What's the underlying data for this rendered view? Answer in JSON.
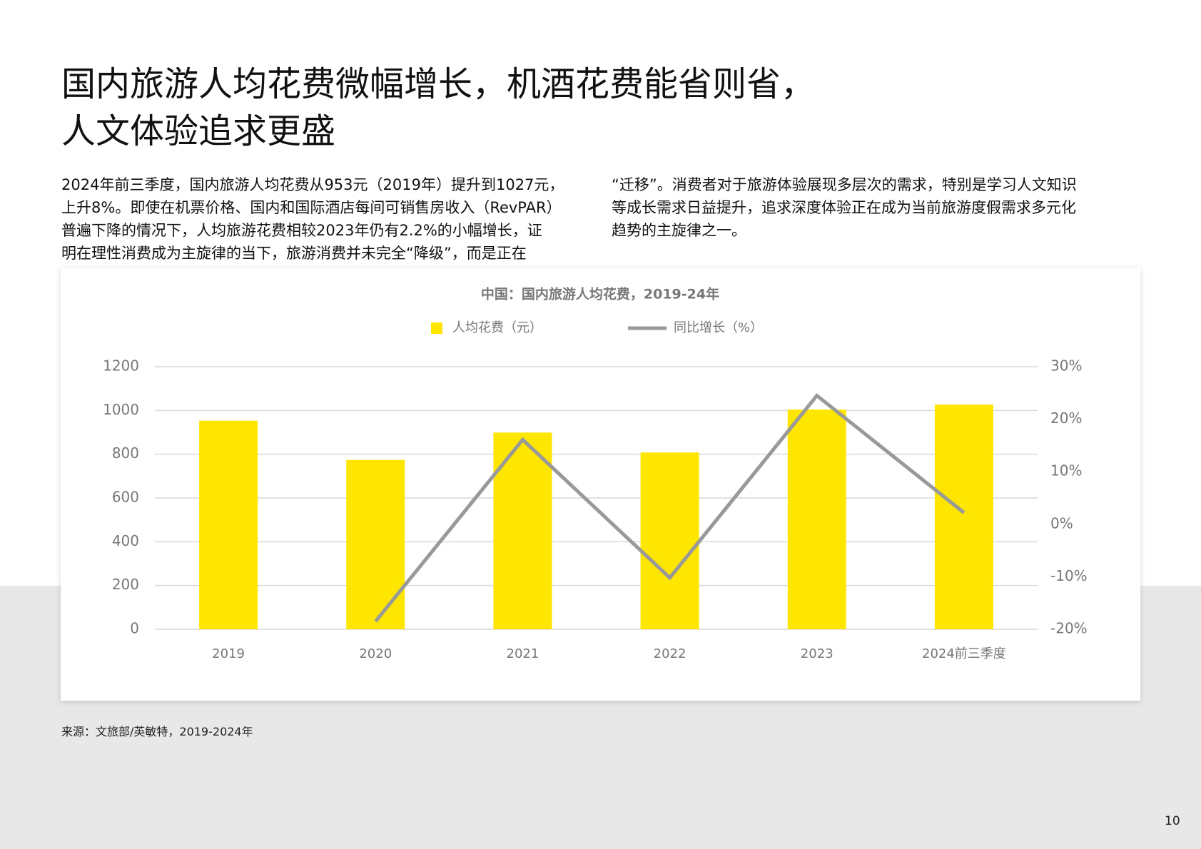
{
  "title_lines": [
    "国内旅游人均花费微幅增长，机酒花费能省则省，",
    "人文体验追求更盛"
  ],
  "paragraph_left": [
    "2024年前三季度，国内旅游人均花费从953元（2019年）提升到1027元，",
    "上升8%。即使在机票价格、国内和国际酒店每间可销售房收入（RevPAR）",
    "普遍下降的情况下，人均旅游花费相较2023年仍有2.2%的小幅增长，证",
    "明在理性消费成为主旋律的当下，旅游消费并未完全“降级”，而是正在"
  ],
  "paragraph_right": [
    "“迁移”。消费者对于旅游体验展现多层次的需求，特别是学习人文知识",
    "等成长需求日益提升，追求深度体验正在成为当前旅游度假需求多元化",
    "趋势的主旋律之一。"
  ],
  "source": "来源：文旅部/英敏特，2019-2024年",
  "page_number": "10",
  "chart_data": {
    "type": "bar-line",
    "title": "中国：国内旅游人均花费，2019-24年",
    "categories": [
      "2019",
      "2020",
      "2021",
      "2022",
      "2023",
      "2024前三季度"
    ],
    "series": [
      {
        "name": "人均花费（元）",
        "type": "bar",
        "color": "#FFE600",
        "values": [
          953,
          774,
          899,
          808,
          1004,
          1027
        ]
      },
      {
        "name": "同比增长（%）",
        "type": "line",
        "axis": "y2",
        "color": "#999999",
        "values": [
          null,
          -18.5,
          16.1,
          -10.2,
          24.5,
          2.2
        ]
      }
    ],
    "ylim": [
      0,
      1200
    ],
    "yticks": [
      0,
      200,
      400,
      600,
      800,
      1000,
      1200
    ],
    "y2lim": [
      -20,
      30
    ],
    "y2ticks": [
      {
        "value": -20,
        "label": "-20%"
      },
      {
        "value": -10,
        "label": "-10%"
      },
      {
        "value": 0,
        "label": "0%"
      },
      {
        "value": 10,
        "label": "10%"
      },
      {
        "value": 20,
        "label": "20%"
      },
      {
        "value": 30,
        "label": "30%"
      }
    ],
    "grid": true
  }
}
